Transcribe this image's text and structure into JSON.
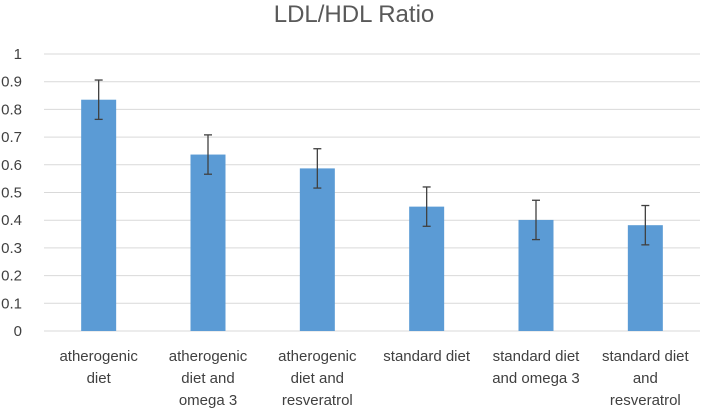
{
  "chart_data": {
    "type": "bar",
    "title": "LDL/HDL Ratio",
    "xlabel": "",
    "ylabel": "",
    "ylim": [
      0,
      1
    ],
    "yticks": [
      "0",
      "0.1",
      "0.2",
      "0.3",
      "0.4",
      "0.5",
      "0.6",
      "0.7",
      "0.8",
      "0.9",
      "1"
    ],
    "grid": true,
    "categories": [
      [
        "atherogenic",
        "diet"
      ],
      [
        "atherogenic",
        "diet and",
        "omega 3"
      ],
      [
        "atherogenic",
        "diet and",
        "resveratrol"
      ],
      [
        "standard diet"
      ],
      [
        "standard diet",
        "and omega 3"
      ],
      [
        "standard diet",
        "and",
        "resveratrol"
      ]
    ],
    "series": [
      {
        "name": "LDL/HDL Ratio",
        "values": [
          0.835,
          0.637,
          0.587,
          0.449,
          0.401,
          0.382
        ],
        "error": [
          0.071,
          0.071,
          0.071,
          0.071,
          0.071,
          0.071
        ],
        "color": "#5b9bd5"
      }
    ]
  }
}
